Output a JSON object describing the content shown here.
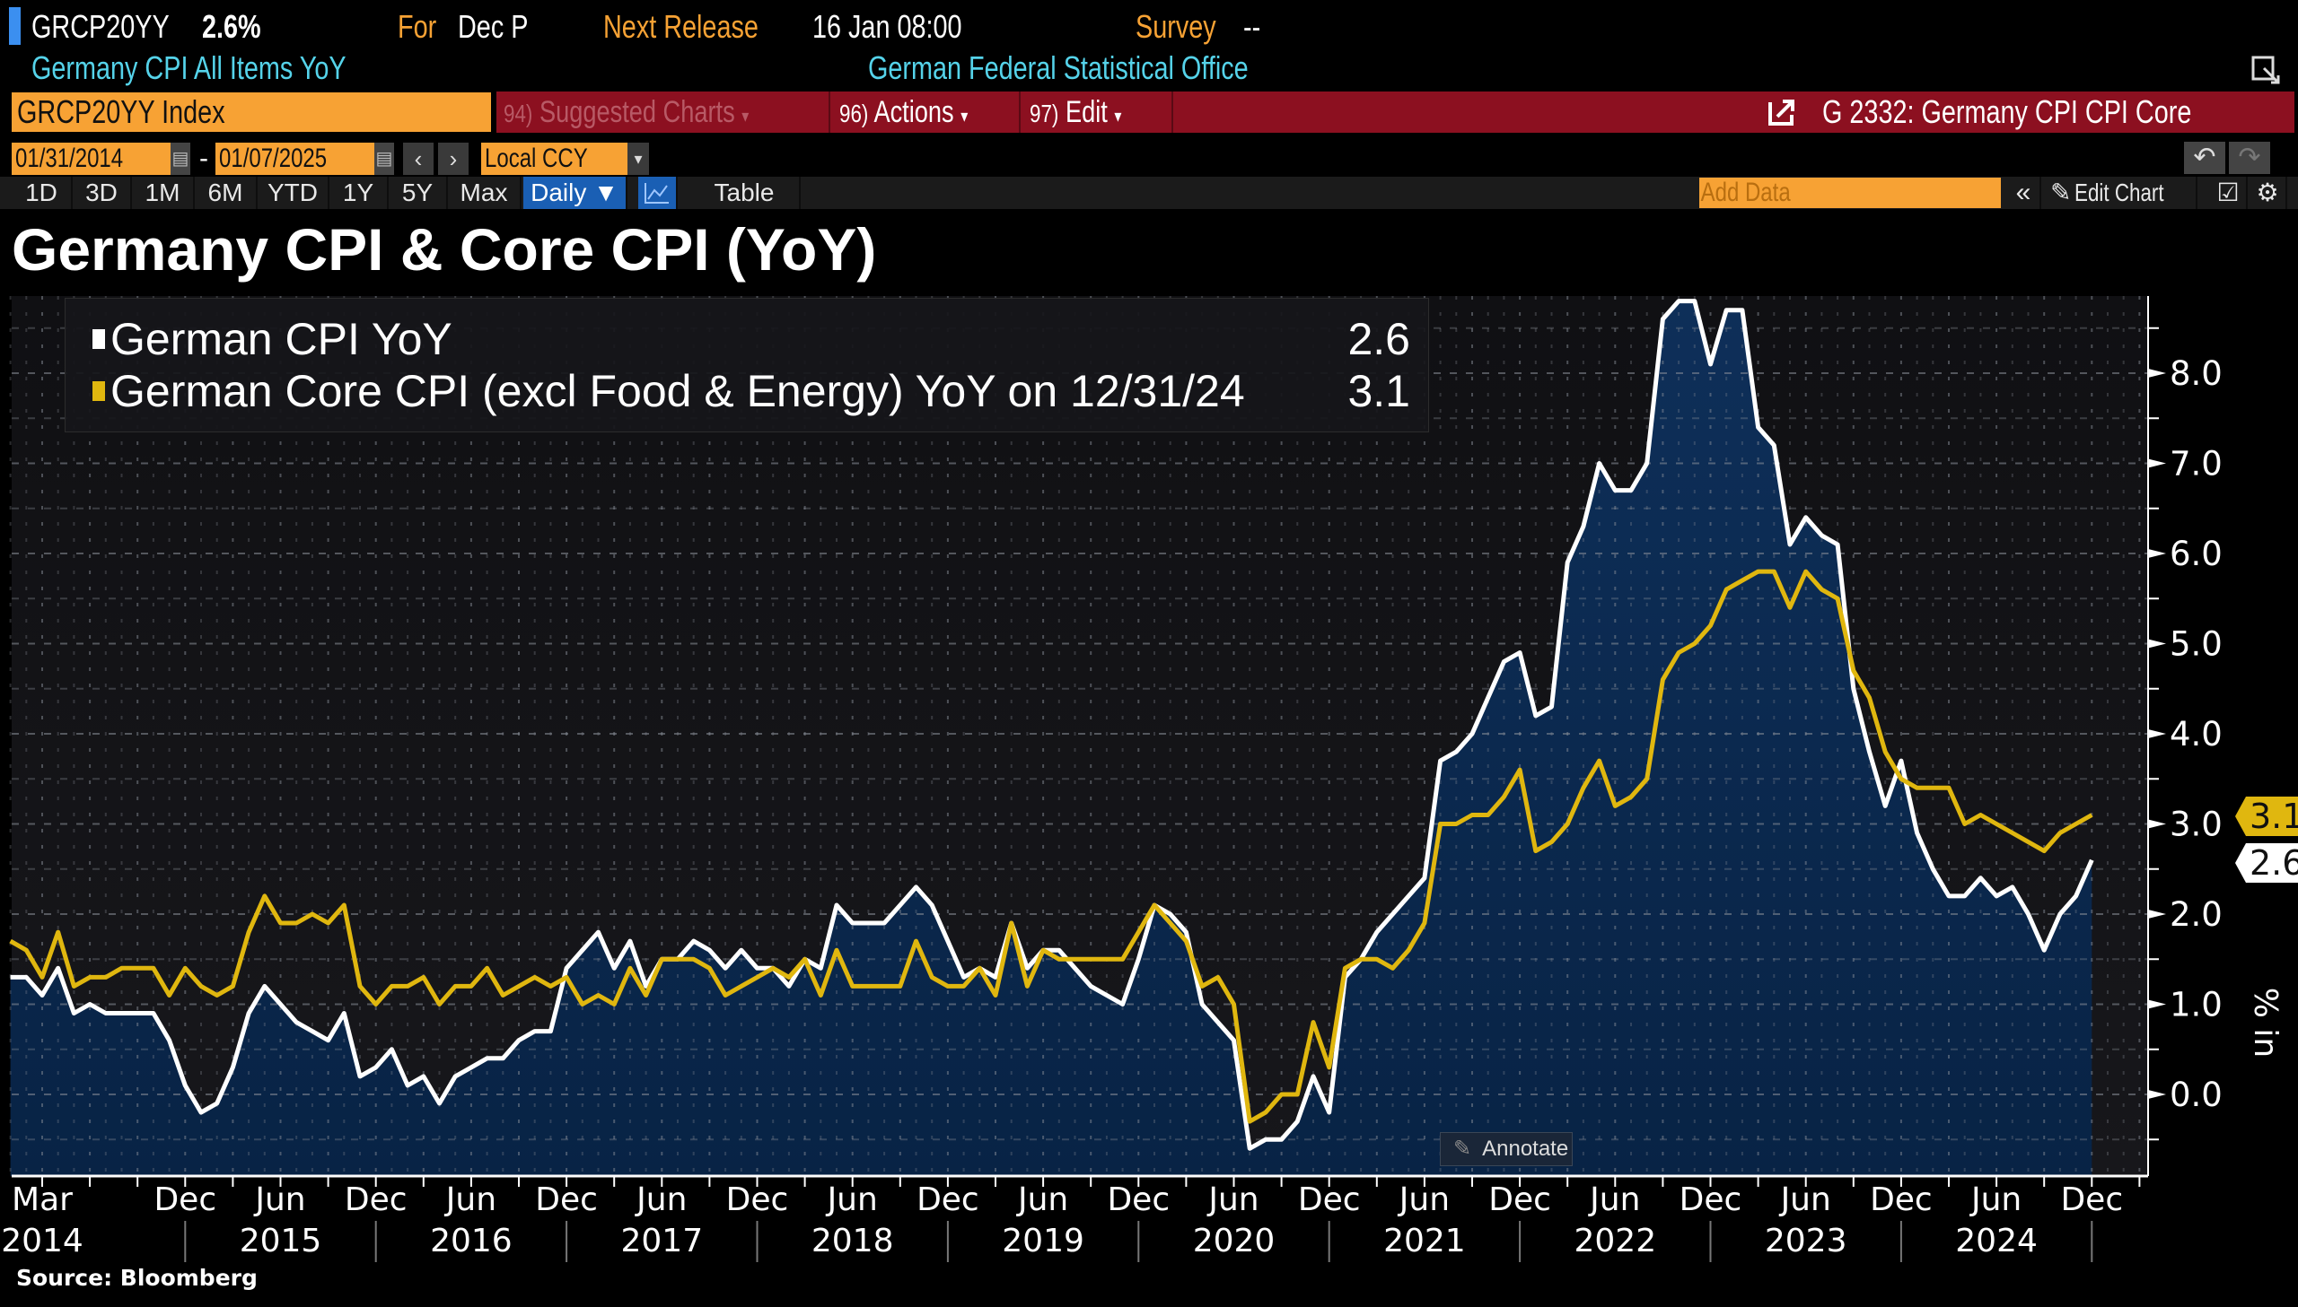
{
  "header": {
    "ticker": "GRCP20YY",
    "last_value": "2.6%",
    "for_label": "For",
    "period": "Dec P",
    "next_release_label": "Next Release",
    "next_release": "16 Jan 08:00",
    "survey_label": "Survey",
    "survey_value": "--",
    "description": "Germany CPI All Items YoY",
    "source_agency": "German Federal Statistical Office"
  },
  "command_bar": {
    "security": "GRCP20YY Index",
    "menus": [
      {
        "num": "94)",
        "label": "Suggested Charts",
        "arrow": "▾"
      },
      {
        "num": "96)",
        "label": "Actions",
        "arrow": "▾"
      },
      {
        "num": "97)",
        "label": "Edit",
        "arrow": "▾"
      }
    ],
    "window_title": "G 2332: Germany CPI CPI Core"
  },
  "date_bar": {
    "start_date": "01/31/2014",
    "separator": "-",
    "end_date": "01/07/2025",
    "prev": "‹",
    "next": "›",
    "currency": "Local CCY",
    "dropdown_arrow": "▾",
    "undo": "↶",
    "redo": "↷"
  },
  "toolbar": {
    "ranges": [
      "1D",
      "3D",
      "1M",
      "6M",
      "YTD",
      "1Y",
      "5Y",
      "Max"
    ],
    "frequency": "Daily ▼",
    "table_label": "Table",
    "add_data_placeholder": "Add Data",
    "collapse": "«",
    "edit_chart": "Edit Chart",
    "icons": [
      "line-chart-icon",
      "pencil-icon",
      "checklist-icon",
      "gear-icon"
    ]
  },
  "chart_title": "Germany CPI & Core CPI (YoY)",
  "annotate_label": "Annotate",
  "source": "Source: Bloomberg",
  "chart_data": {
    "type": "line",
    "title": "Germany CPI & Core CPI (YoY)",
    "x_start": "2014-01",
    "x_end": "2024-12",
    "frequency": "monthly",
    "ylabel": "% in",
    "ylim": [
      -0.9,
      8.9
    ],
    "y_axis_side": "right",
    "grid": true,
    "legend_position": "top-left",
    "series": [
      {
        "name": "German CPI YoY",
        "legend_value": "2.6",
        "last_value_tag": "2.6",
        "color": "#ffffff",
        "area_fill": "#0b2a50",
        "values": [
          1.3,
          1.3,
          1.1,
          1.4,
          0.9,
          1.0,
          0.9,
          0.9,
          0.9,
          0.9,
          0.6,
          0.1,
          -0.2,
          -0.1,
          0.3,
          0.9,
          1.2,
          1.0,
          0.8,
          0.7,
          0.6,
          0.9,
          0.2,
          0.3,
          0.5,
          0.1,
          0.2,
          -0.1,
          0.2,
          0.3,
          0.4,
          0.4,
          0.6,
          0.7,
          0.7,
          1.4,
          1.6,
          1.8,
          1.4,
          1.7,
          1.2,
          1.5,
          1.5,
          1.7,
          1.6,
          1.4,
          1.6,
          1.4,
          1.4,
          1.2,
          1.5,
          1.4,
          2.1,
          1.9,
          1.9,
          1.9,
          2.1,
          2.3,
          2.1,
          1.7,
          1.3,
          1.4,
          1.3,
          1.9,
          1.4,
          1.6,
          1.6,
          1.4,
          1.2,
          1.1,
          1.0,
          1.5,
          2.1,
          2.0,
          1.8,
          1.0,
          0.8,
          0.6,
          -0.6,
          -0.5,
          -0.5,
          -0.3,
          0.2,
          -0.2,
          1.3,
          1.5,
          1.8,
          2.0,
          2.2,
          2.4,
          3.7,
          3.8,
          4.0,
          4.4,
          4.8,
          4.9,
          4.2,
          4.3,
          5.9,
          6.3,
          7.0,
          6.7,
          6.7,
          7.0,
          8.6,
          8.8,
          8.8,
          8.1,
          8.7,
          8.7,
          7.4,
          7.2,
          6.1,
          6.4,
          6.2,
          6.1,
          4.5,
          3.8,
          3.2,
          3.7,
          2.9,
          2.5,
          2.2,
          2.2,
          2.4,
          2.2,
          2.3,
          2.0,
          1.6,
          2.0,
          2.2,
          2.6
        ]
      },
      {
        "name": "German Core CPI (excl Food & Energy) YoY on 12/31/24",
        "legend_value": "3.1",
        "last_value_tag": "3.1",
        "color": "#e0b70f",
        "values": [
          1.7,
          1.6,
          1.3,
          1.8,
          1.2,
          1.3,
          1.3,
          1.4,
          1.4,
          1.4,
          1.1,
          1.4,
          1.2,
          1.1,
          1.2,
          1.8,
          2.2,
          1.9,
          1.9,
          2.0,
          1.9,
          2.1,
          1.2,
          1.0,
          1.2,
          1.2,
          1.3,
          1.0,
          1.2,
          1.2,
          1.4,
          1.1,
          1.2,
          1.3,
          1.2,
          1.3,
          1.0,
          1.1,
          1.0,
          1.4,
          1.1,
          1.5,
          1.5,
          1.5,
          1.4,
          1.1,
          1.2,
          1.3,
          1.4,
          1.3,
          1.5,
          1.1,
          1.6,
          1.2,
          1.2,
          1.2,
          1.2,
          1.7,
          1.3,
          1.2,
          1.2,
          1.4,
          1.1,
          1.9,
          1.2,
          1.6,
          1.5,
          1.5,
          1.5,
          1.5,
          1.5,
          1.8,
          2.1,
          1.9,
          1.7,
          1.2,
          1.3,
          1.0,
          -0.3,
          -0.2,
          0.0,
          0.0,
          0.8,
          0.3,
          1.4,
          1.5,
          1.5,
          1.4,
          1.6,
          1.9,
          3.0,
          3.0,
          3.1,
          3.1,
          3.3,
          3.6,
          2.7,
          2.8,
          3.0,
          3.4,
          3.7,
          3.2,
          3.3,
          3.5,
          4.6,
          4.9,
          5.0,
          5.2,
          5.6,
          5.7,
          5.8,
          5.8,
          5.4,
          5.8,
          5.6,
          5.5,
          4.7,
          4.4,
          3.8,
          3.5,
          3.4,
          3.4,
          3.4,
          3.0,
          3.1,
          3.0,
          2.9,
          2.8,
          2.7,
          2.9,
          3.0,
          3.1
        ]
      }
    ],
    "y_ticks": [
      {
        "value": 0,
        "label": "0.0"
      },
      {
        "value": 1,
        "label": "1.0"
      },
      {
        "value": 2,
        "label": "2.0"
      },
      {
        "value": 3,
        "label": "3.0"
      },
      {
        "value": 4,
        "label": "4.0"
      },
      {
        "value": 5,
        "label": "5.0"
      },
      {
        "value": 6,
        "label": "6.0"
      },
      {
        "value": 7,
        "label": "7.0"
      },
      {
        "value": 8,
        "label": "8.0"
      }
    ],
    "x_ticks": [
      {
        "date": "2014-03",
        "label": "Mar",
        "year": "2014"
      },
      {
        "date": "2014-12",
        "label": "Dec"
      },
      {
        "date": "2015-06",
        "label": "Jun",
        "year": "2015"
      },
      {
        "date": "2015-12",
        "label": "Dec"
      },
      {
        "date": "2016-06",
        "label": "Jun",
        "year": "2016"
      },
      {
        "date": "2016-12",
        "label": "Dec"
      },
      {
        "date": "2017-06",
        "label": "Jun",
        "year": "2017"
      },
      {
        "date": "2017-12",
        "label": "Dec"
      },
      {
        "date": "2018-06",
        "label": "Jun",
        "year": "2018"
      },
      {
        "date": "2018-12",
        "label": "Dec"
      },
      {
        "date": "2019-06",
        "label": "Jun",
        "year": "2019"
      },
      {
        "date": "2019-12",
        "label": "Dec"
      },
      {
        "date": "2020-06",
        "label": "Jun",
        "year": "2020"
      },
      {
        "date": "2020-12",
        "label": "Dec"
      },
      {
        "date": "2021-06",
        "label": "Jun",
        "year": "2021"
      },
      {
        "date": "2021-12",
        "label": "Dec"
      },
      {
        "date": "2022-06",
        "label": "Jun",
        "year": "2022"
      },
      {
        "date": "2022-12",
        "label": "Dec"
      },
      {
        "date": "2023-06",
        "label": "Jun",
        "year": "2023"
      },
      {
        "date": "2023-12",
        "label": "Dec"
      },
      {
        "date": "2024-06",
        "label": "Jun",
        "year": "2024"
      },
      {
        "date": "2024-12",
        "label": "Dec"
      }
    ]
  },
  "colors": {
    "amber": "#f7a234",
    "command_red": "#8c1020",
    "header_cyan": "#55d3ea",
    "active_blue": "#1a5fb4",
    "cpi_line": "#ffffff",
    "core_line": "#e0b70f",
    "area_fill": "#0b2a50"
  }
}
